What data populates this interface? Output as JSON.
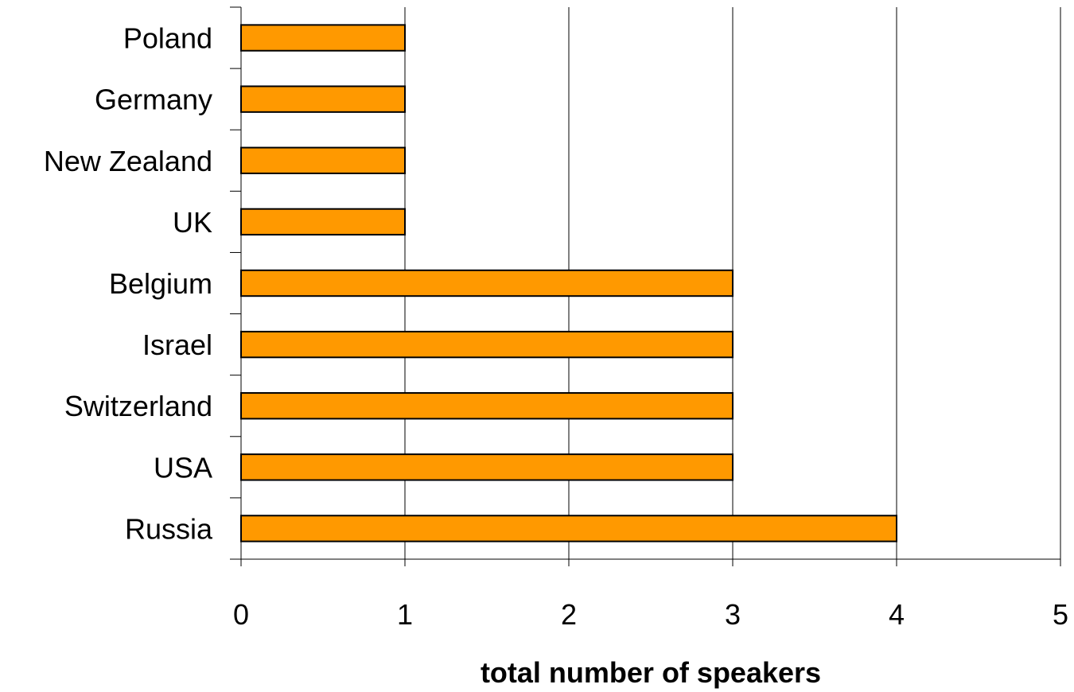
{
  "chart_data": {
    "type": "bar",
    "orientation": "horizontal",
    "categories": [
      "Poland",
      "Germany",
      "New Zealand",
      "UK",
      "Belgium",
      "Israel",
      "Switzerland",
      "USA",
      "Russia"
    ],
    "values": [
      1,
      1,
      1,
      1,
      3,
      3,
      3,
      3,
      4
    ],
    "title": "",
    "xlabel": "total number of speakers",
    "ylabel": "",
    "xlim": [
      0,
      5
    ],
    "xticks": [
      "0",
      "1",
      "2",
      "3",
      "4",
      "5"
    ],
    "grid": "vertical",
    "legend": "none",
    "bar_color": "#FF9900",
    "bar_edge_color": "#000000"
  }
}
